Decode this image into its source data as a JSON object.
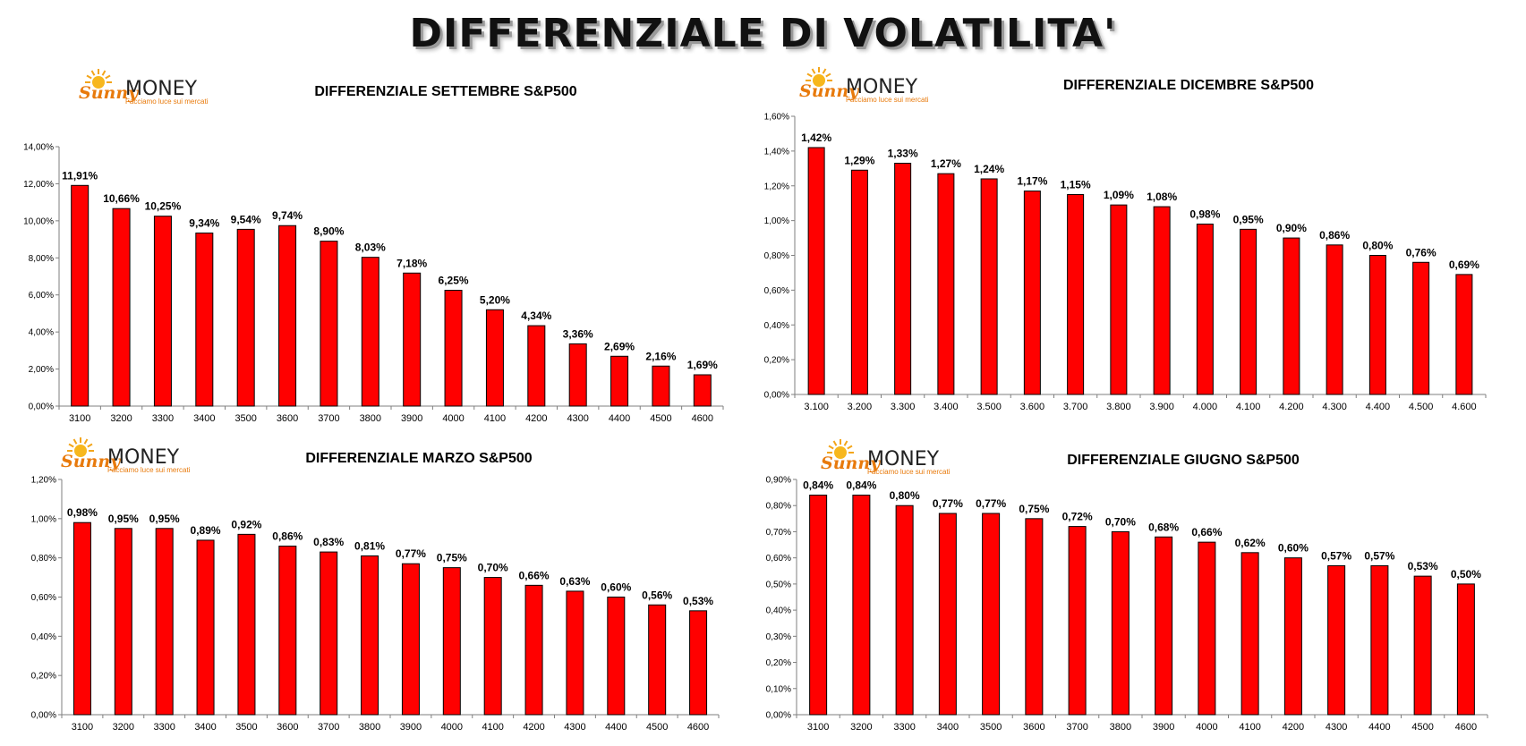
{
  "header": {
    "title": "DIFFERENZIALE DI VOLATILITA'"
  },
  "logo": {
    "script": "Sunny",
    "word": "MONEY",
    "tagline": "Facciamo luce sui mercati"
  },
  "colors": {
    "bar_fill": "#ff0000",
    "bar_stroke": "#000000",
    "axis": "#7f7f7f"
  },
  "chart_data": [
    {
      "id": "settembre",
      "type": "bar",
      "title": "DIFFERENZIALE SETTEMBRE S&P500",
      "categories": [
        "3100",
        "3200",
        "3300",
        "3400",
        "3500",
        "3600",
        "3700",
        "3800",
        "3900",
        "4000",
        "4100",
        "4200",
        "4300",
        "4400",
        "4500",
        "4600"
      ],
      "values": [
        11.91,
        10.66,
        10.25,
        9.34,
        9.54,
        9.74,
        8.9,
        8.03,
        7.18,
        6.25,
        5.2,
        4.34,
        3.36,
        2.69,
        2.16,
        1.69
      ],
      "data_labels": [
        "11,91%",
        "10,66%",
        "10,25%",
        "9,34%",
        "9,54%",
        "9,74%",
        "8,90%",
        "8,03%",
        "7,18%",
        "6,25%",
        "5,20%",
        "4,34%",
        "3,36%",
        "2,69%",
        "2,16%",
        "1,69%"
      ],
      "ylim": [
        0,
        14
      ],
      "yticks": [
        0,
        2,
        4,
        6,
        8,
        10,
        12,
        14
      ],
      "ytick_labels": [
        "0,00%",
        "2,00%",
        "4,00%",
        "6,00%",
        "8,00%",
        "10,00%",
        "12,00%",
        "14,00%"
      ],
      "grid": false,
      "legend": "none"
    },
    {
      "id": "dicembre",
      "type": "bar",
      "title": "DIFFERENZIALE DICEMBRE S&P500",
      "categories": [
        "3.100",
        "3.200",
        "3.300",
        "3.400",
        "3.500",
        "3.600",
        "3.700",
        "3.800",
        "3.900",
        "4.000",
        "4.100",
        "4.200",
        "4.300",
        "4.400",
        "4.500",
        "4.600"
      ],
      "values": [
        1.42,
        1.29,
        1.33,
        1.27,
        1.24,
        1.17,
        1.15,
        1.09,
        1.08,
        0.98,
        0.95,
        0.9,
        0.86,
        0.8,
        0.76,
        0.69
      ],
      "data_labels": [
        "1,42%",
        "1,29%",
        "1,33%",
        "1,27%",
        "1,24%",
        "1,17%",
        "1,15%",
        "1,09%",
        "1,08%",
        "0,98%",
        "0,95%",
        "0,90%",
        "0,86%",
        "0,80%",
        "0,76%",
        "0,69%"
      ],
      "ylim": [
        0,
        1.6
      ],
      "yticks": [
        0,
        0.2,
        0.4,
        0.6,
        0.8,
        1.0,
        1.2,
        1.4,
        1.6
      ],
      "ytick_labels": [
        "0,00%",
        "0,20%",
        "0,40%",
        "0,60%",
        "0,80%",
        "1,00%",
        "1,20%",
        "1,40%",
        "1,60%"
      ],
      "grid": false,
      "legend": "none"
    },
    {
      "id": "marzo",
      "type": "bar",
      "title": "DIFFERENZIALE MARZO S&P500",
      "categories": [
        "3100",
        "3200",
        "3300",
        "3400",
        "3500",
        "3600",
        "3700",
        "3800",
        "3900",
        "4000",
        "4100",
        "4200",
        "4300",
        "4400",
        "4500",
        "4600"
      ],
      "values": [
        0.98,
        0.95,
        0.95,
        0.89,
        0.92,
        0.86,
        0.83,
        0.81,
        0.77,
        0.75,
        0.7,
        0.66,
        0.63,
        0.6,
        0.56,
        0.53
      ],
      "data_labels": [
        "0,98%",
        "0,95%",
        "0,95%",
        "0,89%",
        "0,92%",
        "0,86%",
        "0,83%",
        "0,81%",
        "0,77%",
        "0,75%",
        "0,70%",
        "0,66%",
        "0,63%",
        "0,60%",
        "0,56%",
        "0,53%"
      ],
      "ylim": [
        0,
        1.2
      ],
      "yticks": [
        0,
        0.2,
        0.4,
        0.6,
        0.8,
        1.0,
        1.2
      ],
      "ytick_labels": [
        "0,00%",
        "0,20%",
        "0,40%",
        "0,60%",
        "0,80%",
        "1,00%",
        "1,20%"
      ],
      "grid": false,
      "legend": "none"
    },
    {
      "id": "giugno",
      "type": "bar",
      "title": "DIFFERENZIALE GIUGNO S&P500",
      "categories": [
        "3100",
        "3200",
        "3300",
        "3400",
        "3500",
        "3600",
        "3700",
        "3800",
        "3900",
        "4000",
        "4100",
        "4200",
        "4300",
        "4400",
        "4500",
        "4600"
      ],
      "values": [
        0.84,
        0.84,
        0.8,
        0.77,
        0.77,
        0.75,
        0.72,
        0.7,
        0.68,
        0.66,
        0.62,
        0.6,
        0.57,
        0.57,
        0.53,
        0.5
      ],
      "data_labels": [
        "0,84%",
        "0,84%",
        "0,80%",
        "0,77%",
        "0,77%",
        "0,75%",
        "0,72%",
        "0,70%",
        "0,68%",
        "0,66%",
        "0,62%",
        "0,60%",
        "0,57%",
        "0,57%",
        "0,53%",
        "0,50%"
      ],
      "ylim": [
        0,
        0.9
      ],
      "yticks": [
        0,
        0.1,
        0.2,
        0.3,
        0.4,
        0.5,
        0.6,
        0.7,
        0.8,
        0.9
      ],
      "ytick_labels": [
        "0,00%",
        "0,10%",
        "0,20%",
        "0,30%",
        "0,40%",
        "0,50%",
        "0,60%",
        "0,70%",
        "0,80%",
        "0,90%"
      ],
      "grid": false,
      "legend": "none"
    }
  ]
}
